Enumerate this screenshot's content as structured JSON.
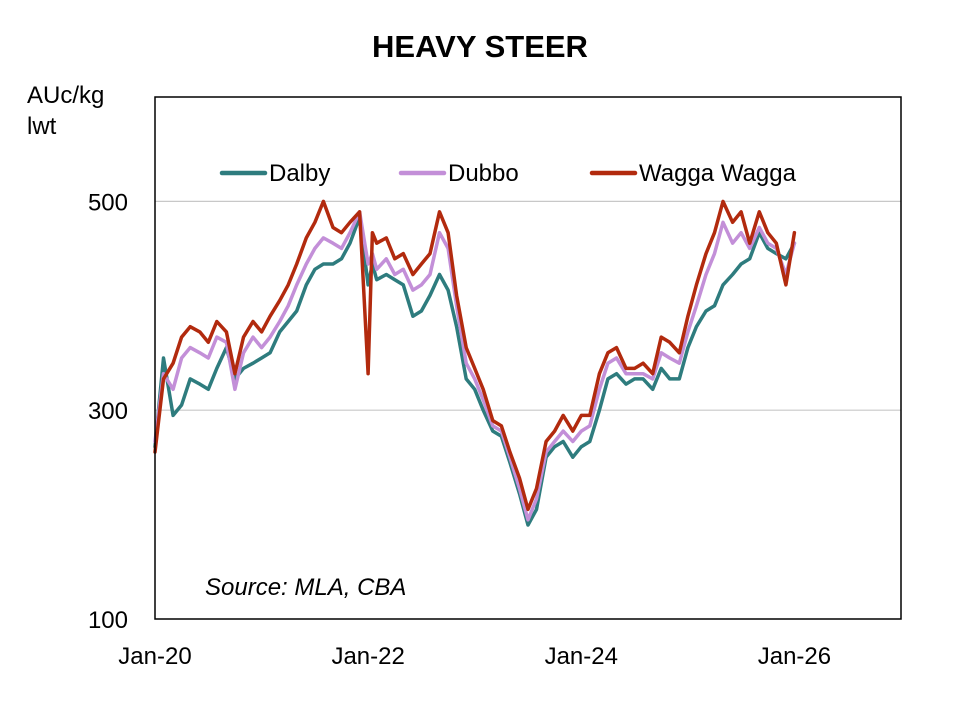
{
  "chart_data": {
    "type": "line",
    "title": "HEAVY STEER",
    "ylabel_line1": "AUc/kg",
    "ylabel_line2": "lwt",
    "xlabel": "",
    "ylim": [
      100,
      600
    ],
    "yticks": [
      100,
      300,
      500
    ],
    "ytick_labels": [
      "100",
      "300",
      "500"
    ],
    "xlim": [
      2020.0,
      2027.0
    ],
    "xticks": [
      2020.0,
      2022.0,
      2024.0,
      2026.0
    ],
    "xtick_labels": [
      "Jan-20",
      "Jan-22",
      "Jan-24",
      "Jan-26"
    ],
    "grid_y": [
      300,
      500
    ],
    "legend_position": "top",
    "source": "Source: MLA, CBA",
    "series": [
      {
        "name": "Dalby",
        "color": "#2E7C7E",
        "x": [
          2020.0,
          2020.08,
          2020.17,
          2020.25,
          2020.33,
          2020.42,
          2020.5,
          2020.58,
          2020.67,
          2020.75,
          2020.83,
          2020.92,
          2021.0,
          2021.08,
          2021.17,
          2021.25,
          2021.33,
          2021.42,
          2021.5,
          2021.58,
          2021.67,
          2021.75,
          2021.83,
          2021.92,
          2022.0,
          2022.04,
          2022.08,
          2022.17,
          2022.25,
          2022.33,
          2022.42,
          2022.5,
          2022.58,
          2022.67,
          2022.75,
          2022.83,
          2022.92,
          2023.0,
          2023.08,
          2023.17,
          2023.25,
          2023.33,
          2023.42,
          2023.5,
          2023.58,
          2023.67,
          2023.75,
          2023.83,
          2023.92,
          2024.0,
          2024.08,
          2024.17,
          2024.25,
          2024.33,
          2024.42,
          2024.5,
          2024.58,
          2024.67,
          2024.75,
          2024.83,
          2024.92,
          2025.0,
          2025.08,
          2025.17,
          2025.25,
          2025.33,
          2025.42,
          2025.5,
          2025.58,
          2025.67,
          2025.75,
          2025.83,
          2025.92,
          2026.0
        ],
        "values": [
          265,
          350,
          295,
          305,
          330,
          325,
          320,
          340,
          360,
          330,
          340,
          345,
          350,
          355,
          375,
          385,
          395,
          420,
          435,
          440,
          440,
          445,
          460,
          485,
          420,
          440,
          425,
          430,
          425,
          420,
          390,
          395,
          410,
          430,
          415,
          380,
          330,
          320,
          300,
          280,
          275,
          250,
          220,
          190,
          205,
          255,
          265,
          270,
          255,
          265,
          270,
          300,
          330,
          335,
          325,
          330,
          330,
          320,
          340,
          330,
          330,
          360,
          380,
          395,
          400,
          420,
          430,
          440,
          445,
          470,
          455,
          450,
          445,
          460
        ]
      },
      {
        "name": "Dubbo",
        "color": "#C38FD8",
        "x": [
          2020.0,
          2020.08,
          2020.17,
          2020.25,
          2020.33,
          2020.42,
          2020.5,
          2020.58,
          2020.67,
          2020.75,
          2020.83,
          2020.92,
          2021.0,
          2021.08,
          2021.17,
          2021.25,
          2021.33,
          2021.42,
          2021.5,
          2021.58,
          2021.67,
          2021.75,
          2021.83,
          2021.92,
          2022.0,
          2022.04,
          2022.08,
          2022.17,
          2022.25,
          2022.33,
          2022.42,
          2022.5,
          2022.58,
          2022.67,
          2022.75,
          2022.83,
          2022.92,
          2023.0,
          2023.08,
          2023.17,
          2023.25,
          2023.33,
          2023.42,
          2023.5,
          2023.58,
          2023.67,
          2023.75,
          2023.83,
          2023.92,
          2024.0,
          2024.08,
          2024.17,
          2024.25,
          2024.33,
          2024.42,
          2024.5,
          2024.58,
          2024.67,
          2024.75,
          2024.83,
          2024.92,
          2025.0,
          2025.08,
          2025.17,
          2025.25,
          2025.33,
          2025.42,
          2025.5,
          2025.58,
          2025.67,
          2025.75,
          2025.83,
          2025.92,
          2026.0
        ],
        "values": [
          270,
          335,
          320,
          350,
          360,
          355,
          350,
          370,
          365,
          320,
          355,
          370,
          360,
          370,
          385,
          400,
          420,
          440,
          455,
          465,
          460,
          455,
          470,
          490,
          440,
          450,
          435,
          445,
          430,
          435,
          415,
          420,
          430,
          470,
          455,
          400,
          345,
          330,
          310,
          285,
          280,
          255,
          225,
          195,
          215,
          260,
          270,
          280,
          270,
          280,
          285,
          320,
          345,
          350,
          335,
          335,
          335,
          330,
          355,
          350,
          345,
          375,
          400,
          430,
          450,
          480,
          460,
          470,
          455,
          475,
          460,
          455,
          430,
          460
        ]
      },
      {
        "name": "Wagga Wagga",
        "color": "#B22A0E",
        "x": [
          2020.0,
          2020.08,
          2020.17,
          2020.25,
          2020.33,
          2020.42,
          2020.5,
          2020.58,
          2020.67,
          2020.75,
          2020.83,
          2020.92,
          2021.0,
          2021.08,
          2021.17,
          2021.25,
          2021.33,
          2021.42,
          2021.5,
          2021.58,
          2021.67,
          2021.75,
          2021.83,
          2021.92,
          2022.0,
          2022.04,
          2022.08,
          2022.17,
          2022.25,
          2022.33,
          2022.42,
          2022.5,
          2022.58,
          2022.67,
          2022.75,
          2022.83,
          2022.92,
          2023.0,
          2023.08,
          2023.17,
          2023.25,
          2023.33,
          2023.42,
          2023.5,
          2023.58,
          2023.67,
          2023.75,
          2023.83,
          2023.92,
          2024.0,
          2024.08,
          2024.17,
          2024.25,
          2024.33,
          2024.42,
          2024.5,
          2024.58,
          2024.67,
          2024.75,
          2024.83,
          2024.92,
          2025.0,
          2025.08,
          2025.17,
          2025.25,
          2025.33,
          2025.42,
          2025.5,
          2025.58,
          2025.67,
          2025.75,
          2025.83,
          2025.92,
          2026.0
        ],
        "values": [
          260,
          330,
          345,
          370,
          380,
          375,
          365,
          385,
          375,
          335,
          370,
          385,
          375,
          390,
          405,
          420,
          440,
          465,
          480,
          500,
          475,
          470,
          480,
          490,
          335,
          470,
          460,
          465,
          445,
          450,
          430,
          440,
          450,
          490,
          470,
          410,
          360,
          340,
          320,
          290,
          285,
          260,
          235,
          205,
          225,
          270,
          280,
          295,
          280,
          295,
          295,
          335,
          355,
          360,
          340,
          340,
          345,
          335,
          370,
          365,
          355,
          390,
          420,
          450,
          470,
          500,
          480,
          490,
          460,
          490,
          470,
          460,
          420,
          470
        ]
      }
    ]
  }
}
